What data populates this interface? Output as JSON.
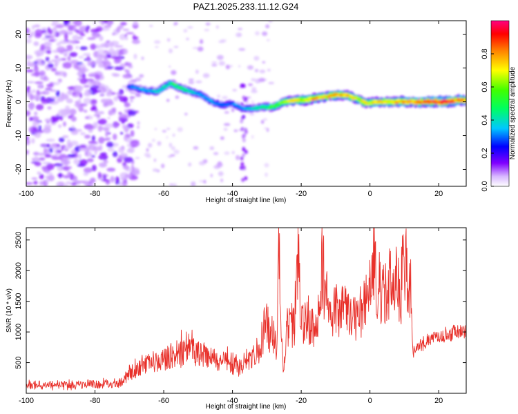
{
  "figure": {
    "title": "PAZ1.2025.233.11.12.G24"
  },
  "chart_data": [
    {
      "type": "heatmap",
      "title": "PAZ1.2025.233.11.12.G24",
      "xlabel": "Height of straight line (km)",
      "ylabel": "Frequency (Hz)",
      "xlim": [
        -100,
        28
      ],
      "ylim": [
        -25,
        24
      ],
      "xticks": [
        "-100",
        "-80",
        "-60",
        "-40",
        "-20",
        "0",
        "20"
      ],
      "yticks": [
        "20",
        "10",
        "0",
        "-10",
        "-20"
      ],
      "colorbar": {
        "label": "Normalized spectral amplitude",
        "range": [
          0.0,
          1.0
        ],
        "ticks": [
          "0.0",
          "0.2",
          "0.4",
          "0.6",
          "0.8"
        ],
        "colors": [
          "#ffffff",
          "#c080ff",
          "#8000ff",
          "#0000ff",
          "#00e0ff",
          "#00ff00",
          "#ffff00",
          "#ff8000",
          "#ff0000",
          "#ff0080"
        ]
      },
      "ridge": {
        "name": "dominant Doppler frequency",
        "x": [
          -70,
          -66,
          -62,
          -58,
          -55,
          -52,
          -49,
          -46,
          -43,
          -40,
          -37,
          -34,
          -31,
          -28,
          -25,
          -22,
          -19,
          -16,
          -13,
          -10,
          -7,
          -4,
          -1,
          2,
          5,
          8,
          11,
          14,
          17,
          20,
          23,
          26,
          28
        ],
        "y": [
          4.5,
          3.5,
          3,
          5.5,
          4,
          3,
          2,
          0,
          -1,
          -0.5,
          -2,
          -2,
          -1.5,
          -1.5,
          0,
          0.5,
          0.5,
          1,
          1.5,
          2,
          2,
          1,
          -0.5,
          0,
          0,
          0,
          0,
          0,
          0,
          0,
          0,
          0.5,
          0.5
        ],
        "amplitude": [
          0.3,
          0.35,
          0.4,
          0.45,
          0.5,
          0.4,
          0.35,
          0.35,
          0.3,
          0.3,
          0.35,
          0.4,
          0.45,
          0.55,
          0.6,
          0.7,
          0.75,
          0.8,
          0.75,
          0.8,
          0.75,
          0.7,
          0.7,
          0.75,
          0.75,
          0.8,
          0.8,
          0.85,
          0.9,
          0.9,
          0.9,
          0.85,
          0.85
        ]
      }
    },
    {
      "type": "line",
      "xlabel": "Height of straight line (km)",
      "ylabel": "SNR (10 * v/v)",
      "xlim": [
        -100,
        28
      ],
      "ylim": [
        0,
        2700
      ],
      "xticks": [
        "-100",
        "-80",
        "-60",
        "-40",
        "-20",
        "0",
        "20"
      ],
      "yticks": [
        "2500",
        "2000",
        "1500",
        "1000",
        "500"
      ],
      "series": [
        {
          "name": "SNR",
          "color": "#e8302a",
          "x": [
            -100,
            -95,
            -90,
            -85,
            -80,
            -75,
            -72,
            -70,
            -68,
            -66,
            -62,
            -58,
            -54,
            -52,
            -50,
            -46,
            -42,
            -38,
            -36,
            -34,
            -32,
            -31,
            -30,
            -28,
            -27,
            -26.5,
            -26,
            -25,
            -24,
            -22,
            -21,
            -20,
            -18,
            -16,
            -15,
            -14,
            -12,
            -8,
            -4,
            -2,
            0,
            1,
            3,
            6,
            9,
            10,
            11,
            12,
            12.5,
            14,
            18,
            22,
            26,
            28
          ],
          "y": [
            150,
            130,
            140,
            140,
            150,
            160,
            190,
            300,
            400,
            450,
            500,
            600,
            700,
            800,
            650,
            550,
            500,
            450,
            550,
            600,
            800,
            1000,
            1100,
            900,
            700,
            2550,
            900,
            400,
            1100,
            1100,
            2300,
            1200,
            1200,
            1100,
            1200,
            2100,
            1400,
            1350,
            1200,
            1350,
            1700,
            2200,
            1600,
            1750,
            1700,
            2400,
            1800,
            1600,
            650,
            750,
            900,
            950,
            1000,
            1000
          ]
        }
      ]
    }
  ]
}
